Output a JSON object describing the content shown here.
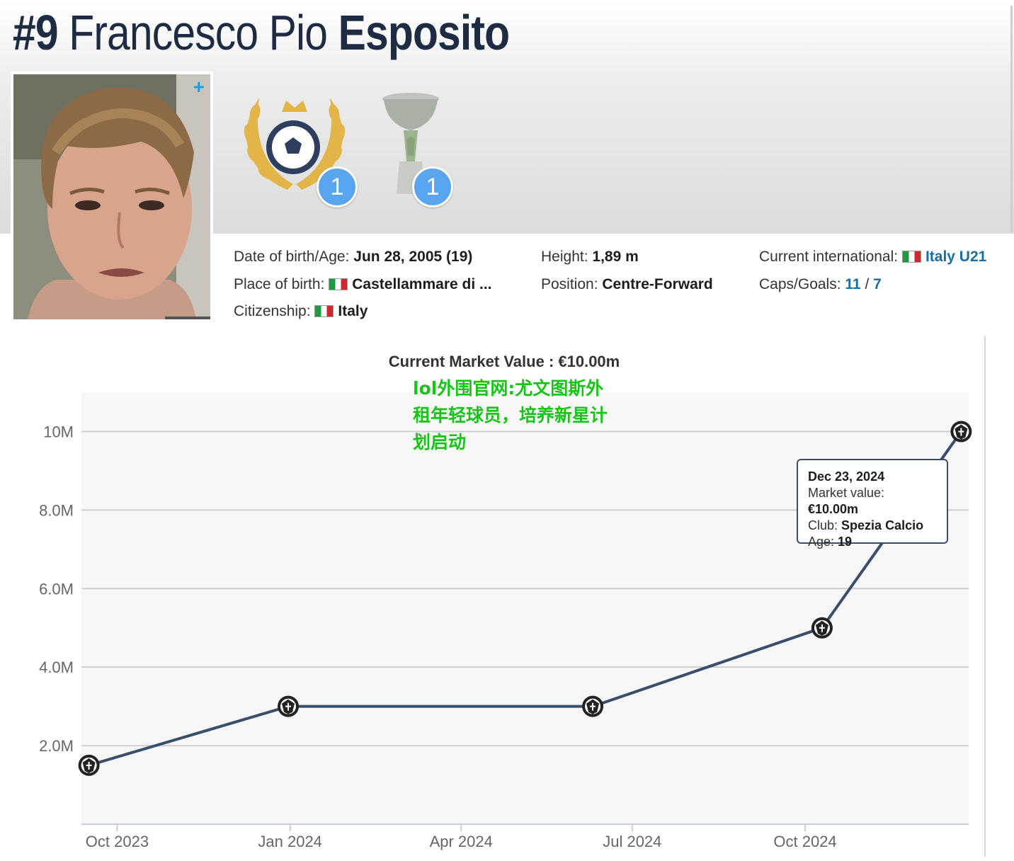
{
  "header": {
    "number": "#9",
    "first_name": "Francesco Pio",
    "last_name": "Esposito"
  },
  "photo": {
    "add_icon": "plus-icon"
  },
  "awards": [
    {
      "name": "award-laurel-icon",
      "count": "1"
    },
    {
      "name": "trophy-cup-icon",
      "count": "1"
    }
  ],
  "info": {
    "dob_label": "Date of birth/Age:",
    "dob_value": "Jun 28, 2005 (19)",
    "pob_label": "Place of birth:",
    "pob_value": "Castellammare di ...",
    "citizenship_label": "Citizenship:",
    "citizenship_value": "Italy",
    "height_label": "Height:",
    "height_value": "1,89 m",
    "position_label": "Position:",
    "position_value": "Centre-Forward",
    "international_label": "Current international:",
    "international_value": "Italy U21",
    "caps_label": "Caps/Goals:",
    "caps_value": "11",
    "caps_sep": "/",
    "goals_value": "7",
    "flag_colors": [
      "#1e9a45",
      "#ffffff",
      "#d3272f"
    ]
  },
  "promo_text": "lol外围官网:尤文图斯外租年轻球员，培养新星计划启动",
  "tooltip": {
    "date": "Dec 23, 2024",
    "mv_label": "Market value:",
    "mv_value": "€10.00m",
    "club_label": "Club:",
    "club_value": "Spezia Calcio",
    "age_label": "Age:",
    "age_value": "19"
  },
  "chart_data": {
    "type": "line",
    "title": "Current Market Value : €10.00m",
    "x_ticks": [
      "Oct 2023",
      "Jan 2024",
      "Apr 2024",
      "Jul 2024",
      "Oct 2024"
    ],
    "y_ticks": [
      "2.0M",
      "4.0M",
      "6.0M",
      "8.0M",
      "10M"
    ],
    "ylim": [
      0,
      11
    ],
    "grid": true,
    "line_color": "#3a4d6b",
    "series": [
      {
        "points": [
          {
            "date": "2023-09-16",
            "value": 1.5
          },
          {
            "date": "2023-12-31",
            "value": 3.0
          },
          {
            "date": "2024-06-10",
            "value": 3.0
          },
          {
            "date": "2024-10-10",
            "value": 5.0
          },
          {
            "date": "2024-12-23",
            "value": 10.0
          }
        ]
      }
    ]
  }
}
